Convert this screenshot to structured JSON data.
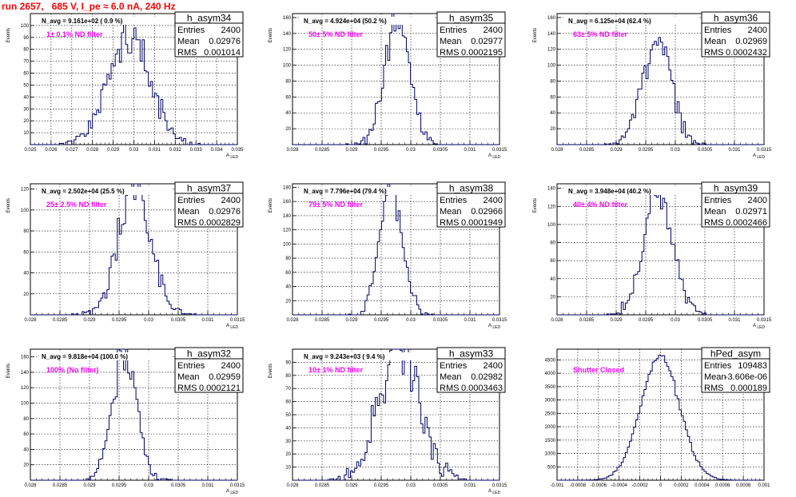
{
  "header": {
    "run_title": "run 2657,   685 V, I_pe ≈ 6.0 nA, 240 Hz"
  },
  "chart_data": [
    {
      "type": "bar",
      "name": "h_asym34",
      "navg": "N_avg = 9.161e+02 ( 0.9 %)",
      "annotation": "1± 0.1% ND filter",
      "stats": [
        [
          "Entries",
          "2400"
        ],
        [
          "Mean",
          "0.02976"
        ],
        [
          "RMS",
          "0.001014"
        ]
      ],
      "ylabel": "Events",
      "xlabel": "A_LED",
      "xlim": [
        0.025,
        0.035
      ],
      "ylim": [
        0,
        110
      ],
      "xticks": [
        "0.025",
        "0.026",
        "0.027",
        "0.028",
        "0.029",
        "0.03",
        "0.031",
        "0.032",
        "0.033",
        "0.034",
        "0.035"
      ],
      "yticks": [
        "10",
        "20",
        "30",
        "40",
        "50",
        "60",
        "70",
        "80",
        "90",
        "100"
      ],
      "hist": {
        "mean": 0.02976,
        "rms": 0.001014,
        "entries": 2400,
        "xmin": 0.025,
        "xmax": 0.035,
        "nbins": 100,
        "seed": 34
      }
    },
    {
      "type": "bar",
      "name": "h_asym35",
      "navg": "N_avg = 4.924e+04 (50.2 %)",
      "annotation": "50± 5% ND filter",
      "stats": [
        [
          "Entries",
          "2400"
        ],
        [
          "Mean",
          "0.02977"
        ],
        [
          "RMS",
          "0.0002195"
        ]
      ],
      "ylabel": "Events",
      "xlabel": "A_LED",
      "xlim": [
        0.028,
        0.0315
      ],
      "ylim": [
        0,
        165
      ],
      "xticks": [
        "0.028",
        "0.0285",
        "0.029",
        "0.0295",
        "0.03",
        "0.0305",
        "0.031",
        "0.0315"
      ],
      "yticks": [
        "20",
        "40",
        "60",
        "80",
        "100",
        "120",
        "140",
        "160"
      ],
      "hist": {
        "mean": 0.02977,
        "rms": 0.0002195,
        "entries": 2400,
        "xmin": 0.028,
        "xmax": 0.0315,
        "nbins": 100,
        "seed": 35
      }
    },
    {
      "type": "bar",
      "name": "h_asym36",
      "navg": "N_avg = 6.125e+04 (62.4 %)",
      "annotation": "63± 5% ND filter",
      "stats": [
        [
          "Entries",
          "2400"
        ],
        [
          "Mean",
          "0.02969"
        ],
        [
          "RMS",
          "0.0002432"
        ]
      ],
      "ylabel": "Events",
      "xlabel": "A_LED",
      "xlim": [
        0.028,
        0.0315
      ],
      "ylim": [
        0,
        165
      ],
      "xticks": [
        "0.028",
        "0.0285",
        "0.029",
        "0.0295",
        "0.03",
        "0.0305",
        "0.031",
        "0.0315"
      ],
      "yticks": [
        "20",
        "40",
        "60",
        "80",
        "100",
        "120",
        "140",
        "160"
      ],
      "hist": {
        "mean": 0.02969,
        "rms": 0.0002432,
        "entries": 2400,
        "xmin": 0.028,
        "xmax": 0.0315,
        "nbins": 100,
        "seed": 36
      }
    },
    {
      "type": "bar",
      "name": "h_asym37",
      "navg": "N_avg = 2.502e+04 (25.5 %)",
      "annotation": "25± 2.5% ND filter",
      "stats": [
        [
          "Entries",
          "2400"
        ],
        [
          "Mean",
          "0.02976"
        ],
        [
          "RMS",
          "0.0002829"
        ]
      ],
      "ylabel": "Events",
      "xlabel": "A_LED",
      "xlim": [
        0.028,
        0.0315
      ],
      "ylim": [
        0,
        125
      ],
      "xticks": [
        "0.028",
        "0.0285",
        "0.029",
        "0.0295",
        "0.03",
        "0.0305",
        "0.031",
        "0.0315"
      ],
      "yticks": [
        "20",
        "40",
        "60",
        "80",
        "100",
        "120"
      ],
      "hist": {
        "mean": 0.02976,
        "rms": 0.0002829,
        "entries": 2400,
        "xmin": 0.028,
        "xmax": 0.0315,
        "nbins": 100,
        "seed": 37
      }
    },
    {
      "type": "bar",
      "name": "h_asym38",
      "navg": "N_avg = 7.796e+04 (79.4 %)",
      "annotation": "79± 5% ND filter",
      "stats": [
        [
          "Entries",
          "2400"
        ],
        [
          "Mean",
          "0.02966"
        ],
        [
          "RMS",
          "0.0001949"
        ]
      ],
      "ylabel": "Events",
      "xlabel": "A_LED",
      "xlim": [
        0.028,
        0.0315
      ],
      "ylim": [
        0,
        185
      ],
      "xticks": [
        "0.028",
        "0.0285",
        "0.029",
        "0.0295",
        "0.03",
        "0.0305",
        "0.031",
        "0.0315"
      ],
      "yticks": [
        "20",
        "40",
        "60",
        "80",
        "100",
        "120",
        "140",
        "160",
        "180"
      ],
      "hist": {
        "mean": 0.02966,
        "rms": 0.0001949,
        "entries": 2400,
        "xmin": 0.028,
        "xmax": 0.0315,
        "nbins": 100,
        "seed": 38
      }
    },
    {
      "type": "bar",
      "name": "h_asym39",
      "navg": "N_avg = 3.948e+04 (40.2 %)",
      "annotation": "40± 4% ND filter",
      "stats": [
        [
          "Entries",
          "2400"
        ],
        [
          "Mean",
          "0.02971"
        ],
        [
          "RMS",
          "0.0002466"
        ]
      ],
      "ylabel": "Events",
      "xlabel": "A_LED",
      "xlim": [
        0.028,
        0.0315
      ],
      "ylim": [
        0,
        145
      ],
      "xticks": [
        "0.028",
        "0.0285",
        "0.029",
        "0.0295",
        "0.03",
        "0.0305",
        "0.031",
        "0.0315"
      ],
      "yticks": [
        "20",
        "40",
        "60",
        "80",
        "100",
        "120",
        "140"
      ],
      "hist": {
        "mean": 0.02971,
        "rms": 0.0002466,
        "entries": 2400,
        "xmin": 0.028,
        "xmax": 0.0315,
        "nbins": 100,
        "seed": 39
      }
    },
    {
      "type": "bar",
      "name": "h_asym32",
      "navg": "N_avg = 9.818e+04 (100.0 %)",
      "annotation": "100% (No filter)",
      "stats": [
        [
          "Entries",
          "2400"
        ],
        [
          "Mean",
          "0.02959"
        ],
        [
          "RMS",
          "0.0002121"
        ]
      ],
      "ylabel": "Events",
      "xlabel": "A_LED",
      "xlim": [
        0.028,
        0.0315
      ],
      "ylim": [
        0,
        170
      ],
      "xticks": [
        "0.028",
        "0.0285",
        "0.029",
        "0.0295",
        "0.03",
        "0.0305",
        "0.031",
        "0.0315"
      ],
      "yticks": [
        "20",
        "40",
        "60",
        "80",
        "100",
        "120",
        "140",
        "160"
      ],
      "hist": {
        "mean": 0.02959,
        "rms": 0.0002121,
        "entries": 2400,
        "xmin": 0.028,
        "xmax": 0.0315,
        "nbins": 100,
        "seed": 32
      }
    },
    {
      "type": "bar",
      "name": "h_asym33",
      "navg": "N_avg = 9.243e+03 ( 9.4 %)",
      "annotation": "10± 1% ND filter",
      "stats": [
        [
          "Entries",
          "2400"
        ],
        [
          "Mean",
          "0.02982"
        ],
        [
          "RMS",
          "0.0003463"
        ]
      ],
      "ylabel": "Events",
      "xlabel": "A_LED",
      "xlim": [
        0.028,
        0.0315
      ],
      "ylim": [
        0,
        100
      ],
      "xticks": [
        "0.028",
        "0.0285",
        "0.029",
        "0.0295",
        "0.03",
        "0.0305",
        "0.031",
        "0.0315"
      ],
      "yticks": [
        "10",
        "20",
        "30",
        "40",
        "50",
        "60",
        "70",
        "80",
        "90"
      ],
      "hist": {
        "mean": 0.02982,
        "rms": 0.0003463,
        "entries": 2400,
        "xmin": 0.028,
        "xmax": 0.0315,
        "nbins": 100,
        "seed": 33
      }
    },
    {
      "type": "bar",
      "name": "hPed_asym",
      "navg": "",
      "annotation": "Shutter Closed",
      "stats": [
        [
          "Entries",
          "109483"
        ],
        [
          "Mean",
          "-3.606e-06"
        ],
        [
          "RMS",
          "0.000189"
        ]
      ],
      "ylabel": "",
      "xlabel": "",
      "xlim": [
        -0.001,
        0.001
      ],
      "ylim": [
        0,
        4900
      ],
      "xticks": [
        "-0.001",
        "-0.0008",
        "-0.0006",
        "-0.0004",
        "-0.0002",
        "0",
        "0.0002",
        "0.0004",
        "0.0006",
        "0.0008",
        "0.001"
      ],
      "yticks": [
        "500",
        "1000",
        "1500",
        "2000",
        "2500",
        "3000",
        "3500",
        "4000",
        "4500"
      ],
      "hist": {
        "mean": -3.606e-06,
        "rms": 0.000189,
        "entries": 109483,
        "xmin": -0.001,
        "xmax": 0.001,
        "nbins": 100,
        "seed": 0
      }
    }
  ]
}
